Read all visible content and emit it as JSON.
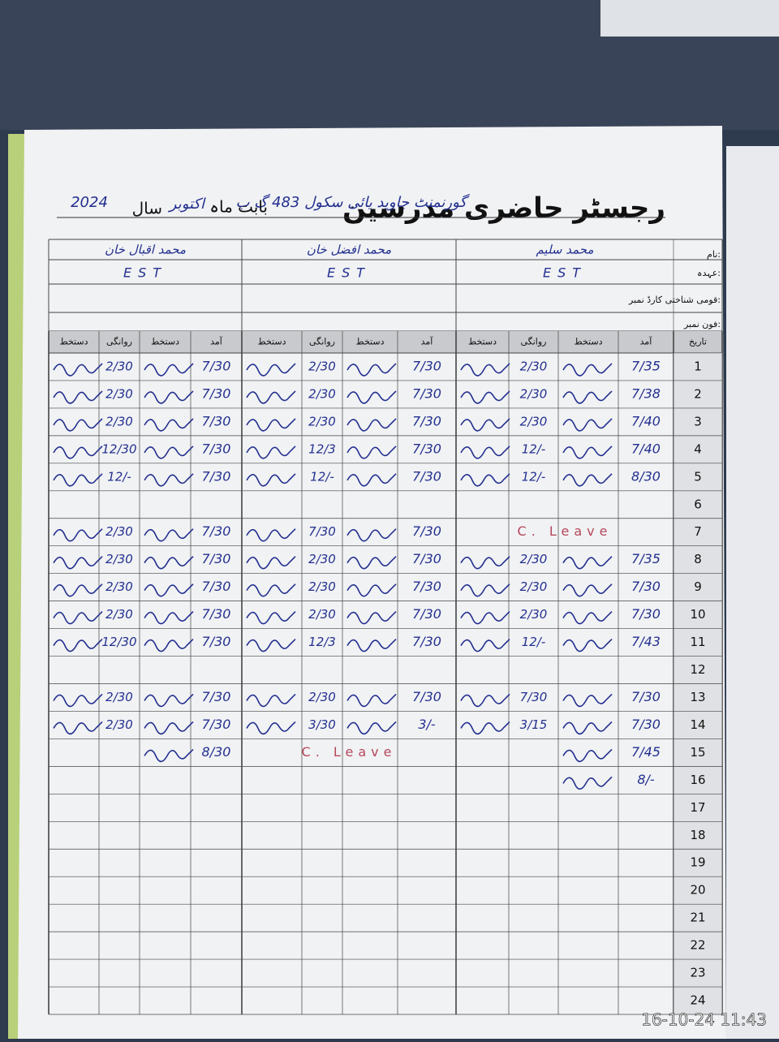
{
  "header": {
    "title": "رجسٹر حاضری مدرسین",
    "school": "گورنمنٹ جاوید یائی سکول 483 گ ب",
    "month_label": "بابت ماہ",
    "month": "اکتوبر",
    "year_label": "سال",
    "year": "2024"
  },
  "fields": {
    "name": "نام:",
    "post": "عہدہ:",
    "cnic": "قومی شناختی کارڈ نمبر:",
    "phone": "فون نمبر:"
  },
  "teachers": [
    {
      "name": "محمد سلیم",
      "post": "EST"
    },
    {
      "name": "محمد افضل خان",
      "post": "EST"
    },
    {
      "name": "محمد اقبال خان",
      "post": "EST"
    }
  ],
  "table": {
    "columns": [
      "تاریخ",
      "آمد",
      "دستخط",
      "روانگی",
      "دستخط",
      "آمد",
      "دستخط",
      "روانگی",
      "دستخط",
      "آمد",
      "دستخط",
      "روانگی",
      "دستخط"
    ],
    "rows": [
      {
        "date": 1,
        "entries": [
          [
            "7/35",
            "2/30"
          ],
          [
            "7/30",
            "2/30"
          ],
          [
            "7/30",
            "2/30"
          ]
        ]
      },
      {
        "date": 2,
        "entries": [
          [
            "7/38",
            "2/30"
          ],
          [
            "7/30",
            "2/30"
          ],
          [
            "7/30",
            "2/30"
          ]
        ]
      },
      {
        "date": 3,
        "entries": [
          [
            "7/40",
            "2/30"
          ],
          [
            "7/30",
            "2/30"
          ],
          [
            "7/30",
            "2/30"
          ]
        ]
      },
      {
        "date": 4,
        "entries": [
          [
            "7/40",
            "12/-"
          ],
          [
            "7/30",
            "12/3"
          ],
          [
            "7/30",
            "12/30"
          ]
        ]
      },
      {
        "date": 5,
        "entries": [
          [
            "8/30",
            "12/-"
          ],
          [
            "7/30",
            "12/-"
          ],
          [
            "7/30",
            "12/-"
          ]
        ]
      },
      {
        "date": 6,
        "entries": [
          null,
          null,
          null
        ]
      },
      {
        "date": 7,
        "entries": [
          {
            "note": "C. Leave"
          },
          [
            "7/30",
            "7/30"
          ],
          [
            "7/30",
            "2/30"
          ]
        ]
      },
      {
        "date": 8,
        "entries": [
          [
            "7/35",
            "2/30"
          ],
          [
            "7/30",
            "2/30"
          ],
          [
            "7/30",
            "2/30"
          ]
        ]
      },
      {
        "date": 9,
        "entries": [
          [
            "7/30",
            "2/30"
          ],
          [
            "7/30",
            "2/30"
          ],
          [
            "7/30",
            "2/30"
          ]
        ]
      },
      {
        "date": 10,
        "entries": [
          [
            "7/30",
            "2/30"
          ],
          [
            "7/30",
            "2/30"
          ],
          [
            "7/30",
            "2/30"
          ]
        ]
      },
      {
        "date": 11,
        "entries": [
          [
            "7/43",
            "12/-"
          ],
          [
            "7/30",
            "12/3"
          ],
          [
            "7/30",
            "12/30"
          ]
        ]
      },
      {
        "date": 12,
        "entries": [
          null,
          null,
          null
        ]
      },
      {
        "date": 13,
        "entries": [
          [
            "7/30",
            "7/30"
          ],
          [
            "7/30",
            "2/30"
          ],
          [
            "7/30",
            "2/30"
          ]
        ]
      },
      {
        "date": 14,
        "entries": [
          [
            "7/30",
            "3/15"
          ],
          [
            "3/-",
            "3/30"
          ],
          [
            "7/30",
            "2/30"
          ]
        ]
      },
      {
        "date": 15,
        "entries": [
          [
            "7/45",
            null
          ],
          {
            "note": "C. Leave"
          },
          [
            "8/30",
            null
          ]
        ]
      },
      {
        "date": 16,
        "entries": [
          [
            "8/-",
            null
          ],
          null,
          null
        ]
      },
      {
        "date": 17,
        "entries": [
          null,
          null,
          null
        ]
      },
      {
        "date": 18,
        "entries": [
          null,
          null,
          null
        ]
      },
      {
        "date": 19,
        "entries": [
          null,
          null,
          null
        ]
      },
      {
        "date": 20,
        "entries": [
          null,
          null,
          null
        ]
      },
      {
        "date": 21,
        "entries": [
          null,
          null,
          null
        ]
      },
      {
        "date": 22,
        "entries": [
          null,
          null,
          null
        ]
      },
      {
        "date": 23,
        "entries": [
          null,
          null,
          null
        ]
      },
      {
        "date": 24,
        "entries": [
          null,
          null,
          null
        ]
      }
    ]
  },
  "timestamp": "16-10-24 11:43"
}
